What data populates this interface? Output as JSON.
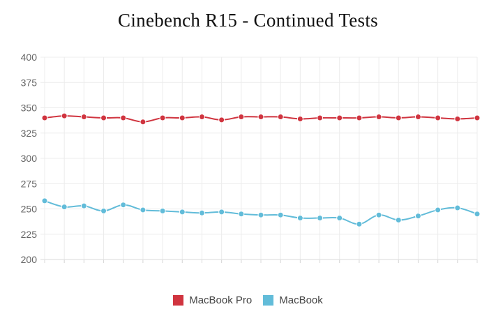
{
  "chart_data": {
    "type": "line",
    "title": "Cinebench R15 - Continued Tests",
    "xlabel": "",
    "ylabel": "",
    "ylim": [
      200,
      400
    ],
    "yticks": [
      200,
      225,
      250,
      275,
      300,
      325,
      350,
      375,
      400
    ],
    "x": [
      1,
      2,
      3,
      4,
      5,
      6,
      7,
      8,
      9,
      10,
      11,
      12,
      13,
      14,
      15,
      16,
      17,
      18,
      19,
      20,
      21,
      22,
      23
    ],
    "grid": true,
    "legend_position": "bottom",
    "series": [
      {
        "name": "MacBook Pro",
        "color": "#d0343f",
        "values": [
          340,
          342,
          341,
          340,
          340,
          336,
          340,
          340,
          341,
          338,
          341,
          341,
          341,
          339,
          340,
          340,
          340,
          341,
          340,
          341,
          340,
          339,
          340
        ]
      },
      {
        "name": "MacBook",
        "color": "#62bcd9",
        "values": [
          258,
          252,
          253,
          248,
          254,
          249,
          248,
          247,
          246,
          247,
          245,
          244,
          244,
          241,
          241,
          241,
          235,
          244,
          239,
          243,
          249,
          251,
          245
        ]
      }
    ]
  }
}
